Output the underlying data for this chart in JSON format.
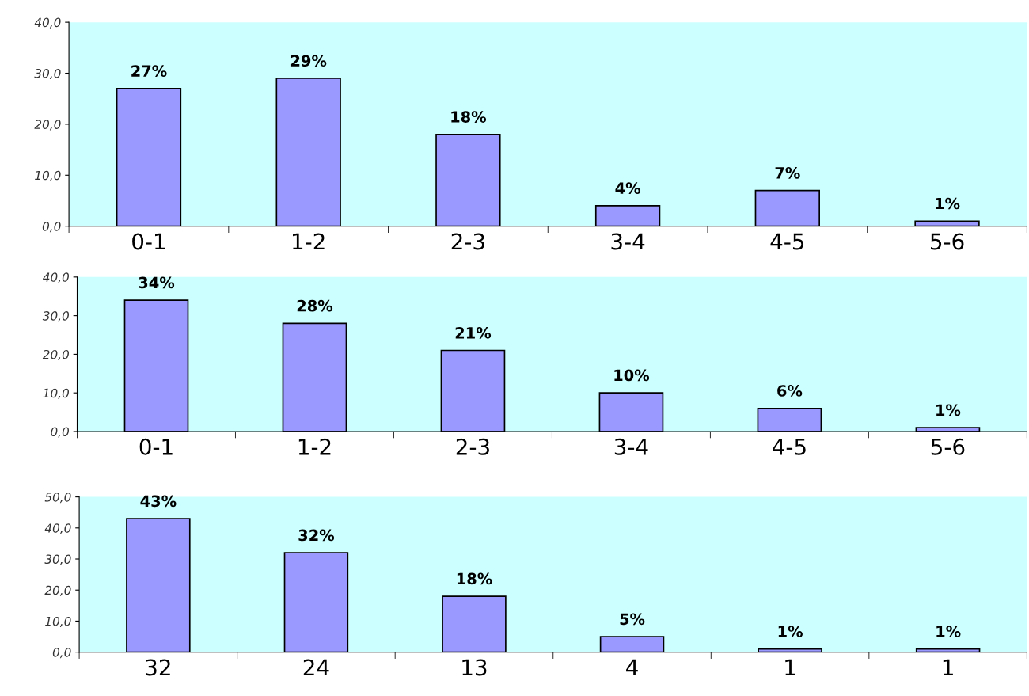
{
  "chart_data": [
    {
      "type": "bar",
      "categories": [
        "0-1",
        "1-2",
        "2-3",
        "3-4",
        "4-5",
        "5-6"
      ],
      "values": [
        27,
        29,
        18,
        4,
        7,
        1
      ],
      "value_labels": [
        "27%",
        "29%",
        "18%",
        "4%",
        "7%",
        "1%"
      ],
      "color": "#9999ff",
      "ylim": [
        0,
        40
      ],
      "yticks": [
        {
          "value": 0,
          "label": "0,0"
        },
        {
          "value": 10,
          "label": "10,0"
        },
        {
          "value": 20,
          "label": "20,0"
        },
        {
          "value": 30,
          "label": "30,0"
        },
        {
          "value": 40,
          "label": "40,0"
        }
      ],
      "grid": false,
      "legend": false
    },
    {
      "type": "bar",
      "categories": [
        "0-1",
        "1-2",
        "2-3",
        "3-4",
        "4-5",
        "5-6"
      ],
      "values": [
        34,
        28,
        21,
        10,
        6,
        1
      ],
      "value_labels": [
        "34%",
        "28%",
        "21%",
        "10%",
        "6%",
        "1%"
      ],
      "color": "#9999ff",
      "ylim": [
        0,
        40
      ],
      "yticks": [
        {
          "value": 0,
          "label": "0,0"
        },
        {
          "value": 10,
          "label": "10,0"
        },
        {
          "value": 20,
          "label": "20,0"
        },
        {
          "value": 30,
          "label": "30,0"
        },
        {
          "value": 40,
          "label": "40,0"
        }
      ],
      "grid": false,
      "legend": false
    },
    {
      "type": "bar",
      "categories": [
        "32",
        "24",
        "13",
        "4",
        "1",
        "1"
      ],
      "values": [
        43,
        32,
        18,
        5,
        1,
        1
      ],
      "value_labels": [
        "43%",
        "32%",
        "18%",
        "5%",
        "1%",
        "1%"
      ],
      "color": "#9999ff",
      "ylim": [
        0,
        50
      ],
      "yticks": [
        {
          "value": 0,
          "label": "0,0"
        },
        {
          "value": 10,
          "label": "10,0"
        },
        {
          "value": 20,
          "label": "20,0"
        },
        {
          "value": 30,
          "label": "30,0"
        },
        {
          "value": 40,
          "label": "40,0"
        },
        {
          "value": 50,
          "label": "50,0"
        }
      ],
      "grid": false,
      "legend": false
    }
  ]
}
